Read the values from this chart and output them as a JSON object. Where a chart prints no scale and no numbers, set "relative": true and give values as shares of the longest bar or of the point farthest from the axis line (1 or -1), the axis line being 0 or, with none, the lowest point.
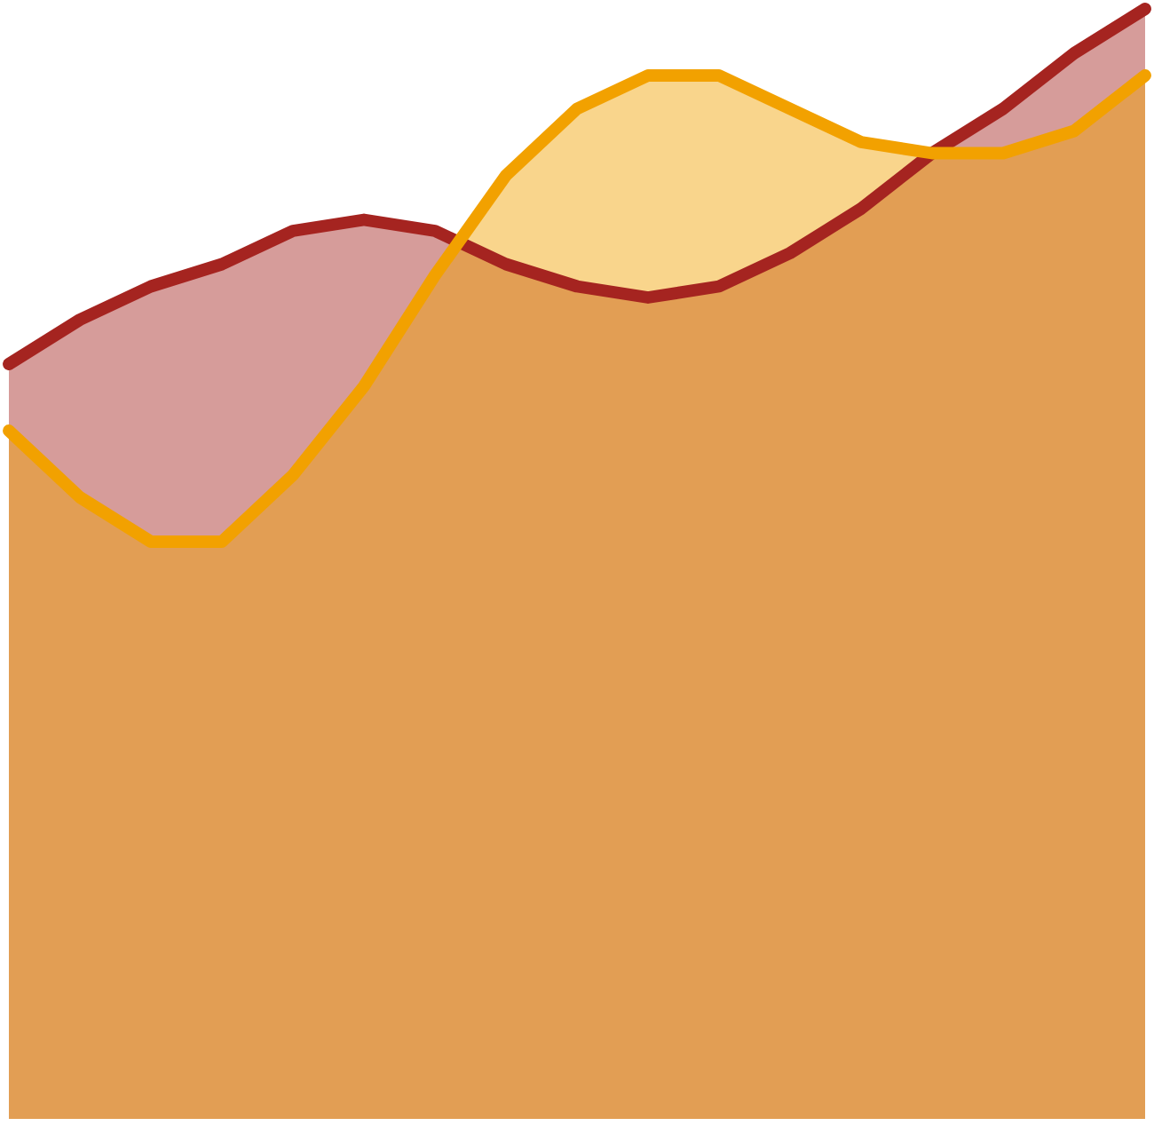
{
  "chart_data": {
    "type": "area",
    "relative": true,
    "categories": [
      null,
      null,
      null,
      null,
      null,
      null,
      null,
      null,
      null,
      null,
      null,
      null,
      null,
      null,
      null,
      null,
      null
    ],
    "legend": false,
    "series": [
      {
        "color": "#a52420",
        "values": [
          0.68,
          0.72,
          0.75,
          0.77,
          0.8,
          0.81,
          0.8,
          0.77,
          0.75,
          0.74,
          0.75,
          0.78,
          0.82,
          0.87,
          0.91,
          0.96,
          1.0
        ]
      },
      {
        "color": "#f2a100",
        "values": [
          0.62,
          0.56,
          0.52,
          0.52,
          0.58,
          0.66,
          0.76,
          0.85,
          0.91,
          0.94,
          0.94,
          0.91,
          0.88,
          0.87,
          0.87,
          0.89,
          0.94
        ]
      }
    ]
  }
}
